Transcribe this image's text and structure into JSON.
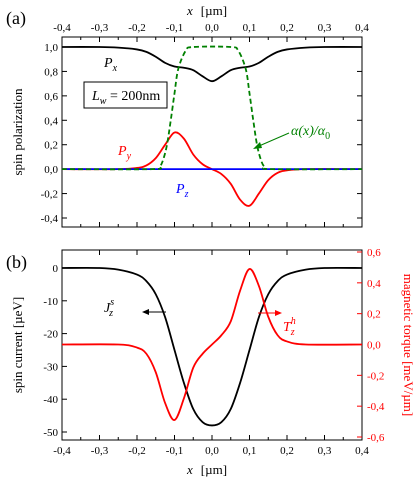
{
  "chart_data": [
    {
      "type": "line",
      "panel_label": "(a)",
      "xlabel_top": "x  [µm]",
      "ylabel": "spin polarization",
      "xlim": [
        -0.4,
        0.4
      ],
      "ylim": [
        -0.4,
        1.0
      ],
      "x_ticks": [
        "-0,4",
        "-0,3",
        "-0,2",
        "-0,1",
        "0,0",
        "0,1",
        "0,2",
        "0,3",
        "0,4"
      ],
      "y_ticks": [
        "-0,4",
        "-0,2",
        "0,0",
        "0,2",
        "0,4",
        "0,6",
        "0,8",
        "1,0"
      ],
      "annotation_box": "Lw = 200nm",
      "series": [
        {
          "name": "Px",
          "color": "#000000",
          "dash": "solid",
          "x": [
            -0.4,
            -0.3,
            -0.25,
            -0.2,
            -0.175,
            -0.15,
            -0.125,
            -0.1,
            -0.075,
            -0.05,
            -0.025,
            0.0,
            0.025,
            0.05,
            0.075,
            0.1,
            0.125,
            0.15,
            0.175,
            0.2,
            0.25,
            0.3,
            0.4
          ],
          "y": [
            1.0,
            1.0,
            0.995,
            0.98,
            0.96,
            0.92,
            0.87,
            0.84,
            0.83,
            0.81,
            0.76,
            0.72,
            0.76,
            0.81,
            0.83,
            0.84,
            0.87,
            0.92,
            0.96,
            0.98,
            0.995,
            1.0,
            1.0
          ]
        },
        {
          "name": "Py",
          "color": "#ff0000",
          "dash": "solid",
          "x": [
            -0.4,
            -0.25,
            -0.2,
            -0.175,
            -0.15,
            -0.125,
            -0.1,
            -0.075,
            -0.05,
            -0.025,
            0.0,
            0.025,
            0.05,
            0.075,
            0.1,
            0.125,
            0.15,
            0.175,
            0.2,
            0.25,
            0.4
          ],
          "y": [
            0.0,
            0.0,
            0.01,
            0.03,
            0.09,
            0.2,
            0.3,
            0.25,
            0.12,
            0.04,
            0.0,
            -0.04,
            -0.12,
            -0.25,
            -0.3,
            -0.2,
            -0.09,
            -0.03,
            -0.01,
            0.0,
            0.0
          ]
        },
        {
          "name": "Pz",
          "color": "#0000ff",
          "dash": "solid",
          "x": [
            -0.4,
            0.4
          ],
          "y": [
            0.0,
            0.0
          ]
        },
        {
          "name": "α(x)/α0",
          "color": "#008000",
          "dash": "dashed",
          "x": [
            -0.4,
            -0.16,
            -0.14,
            -0.13,
            -0.12,
            -0.11,
            -0.1,
            -0.09,
            -0.07,
            -0.05,
            0.05,
            0.07,
            0.09,
            0.1,
            0.11,
            0.12,
            0.13,
            0.14,
            0.16,
            0.4
          ],
          "y": [
            0.0,
            0.0,
            0.02,
            0.08,
            0.2,
            0.4,
            0.62,
            0.82,
            0.97,
            1.0,
            1.0,
            0.97,
            0.82,
            0.62,
            0.4,
            0.2,
            0.08,
            0.02,
            0.0,
            0.0
          ]
        }
      ],
      "labels": {
        "px": "P",
        "px_sub": "x",
        "py": "P",
        "py_sub": "y",
        "pz": "P",
        "pz_sub": "z",
        "alpha": "α(x)/α",
        "alpha_sub": "0",
        "lw": "L",
        "lw_sub": "w",
        "lw_val": " = 200nm"
      }
    },
    {
      "type": "line",
      "panel_label": "(b)",
      "xlabel": "x  [µm]",
      "ylabel_left": "spin current  [µeV]",
      "ylabel_right": "magnetic torque  [meV/µm]",
      "xlim": [
        -0.4,
        0.4
      ],
      "ylim_left": [
        -52,
        3
      ],
      "ylim_right": [
        -0.6,
        0.6
      ],
      "x_ticks": [
        "-0,4",
        "-0,3",
        "-0,2",
        "-0,1",
        "0,0",
        "0,1",
        "0,2",
        "0,3",
        "0,4"
      ],
      "y_ticks_left": [
        "0",
        "-10",
        "-20",
        "-30",
        "-40",
        "-50"
      ],
      "y_ticks_right": [
        "0,6",
        "0,4",
        "0,2",
        "0,0",
        "-0,2",
        "-0,4",
        "-0,6"
      ],
      "series": [
        {
          "name": "Jz^s",
          "color": "#000000",
          "axis": "left",
          "x": [
            -0.4,
            -0.3,
            -0.25,
            -0.2,
            -0.175,
            -0.15,
            -0.125,
            -0.1,
            -0.075,
            -0.05,
            -0.025,
            0.0,
            0.025,
            0.05,
            0.075,
            0.1,
            0.125,
            0.15,
            0.175,
            0.2,
            0.25,
            0.3,
            0.4
          ],
          "y": [
            0.0,
            0.0,
            -0.5,
            -2.0,
            -4.0,
            -8.0,
            -15.0,
            -25.0,
            -35.0,
            -43.0,
            -47.0,
            -48.0,
            -47.0,
            -43.0,
            -35.0,
            -25.0,
            -15.0,
            -8.0,
            -4.0,
            -2.0,
            -0.5,
            0.0,
            0.0
          ]
        },
        {
          "name": "Tz^h",
          "color": "#ff0000",
          "axis": "right",
          "x": [
            -0.4,
            -0.25,
            -0.2,
            -0.175,
            -0.15,
            -0.125,
            -0.1,
            -0.075,
            -0.05,
            -0.025,
            0.0,
            0.025,
            0.05,
            0.075,
            0.1,
            0.125,
            0.15,
            0.175,
            0.2,
            0.25,
            0.4
          ],
          "y": [
            0.0,
            0.0,
            -0.02,
            -0.06,
            -0.18,
            -0.38,
            -0.49,
            -0.35,
            -0.15,
            -0.06,
            0.0,
            0.06,
            0.15,
            0.35,
            0.49,
            0.38,
            0.18,
            0.06,
            0.02,
            0.0,
            0.0
          ]
        }
      ],
      "labels": {
        "j": "J",
        "j_sub": "z",
        "j_sup": "s",
        "t": "T",
        "t_sub": "z",
        "t_sup": "h"
      }
    }
  ]
}
